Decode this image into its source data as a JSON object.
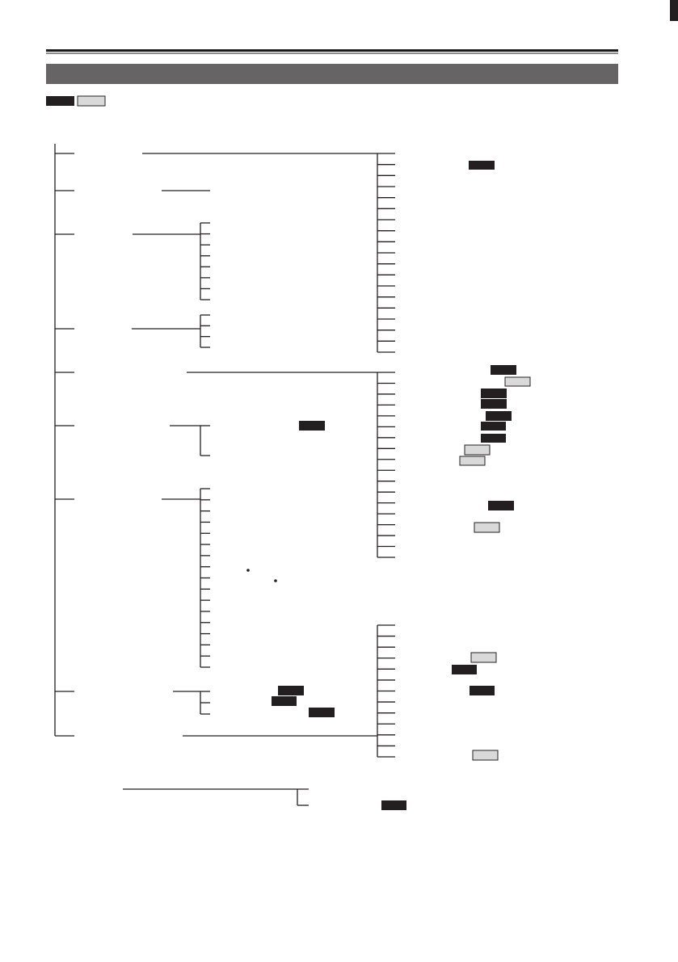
{
  "colors": {
    "rule": "#1a1a1a",
    "header_bar": "#666464",
    "badge_dark": "#231f20",
    "badge_light": "#d9d9d9",
    "line": "#231f20"
  },
  "legend": {
    "badges": [
      {
        "style": "dark"
      },
      {
        "style": "light"
      }
    ]
  },
  "tree": {
    "main_branch_count": 9
  }
}
